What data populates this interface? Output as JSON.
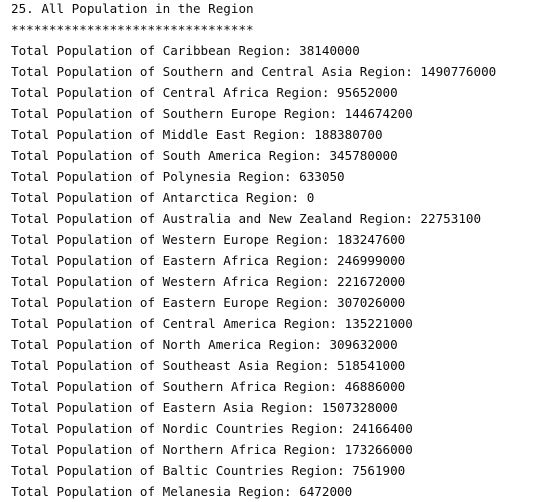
{
  "console": {
    "heading": "25. All Population in the Region",
    "separator": "********************************",
    "lines": [
      "Total Population of Caribbean Region: 38140000",
      "Total Population of Southern and Central Asia Region: 1490776000",
      "Total Population of Central Africa Region: 95652000",
      "Total Population of Southern Europe Region: 144674200",
      "Total Population of Middle East Region: 188380700",
      "Total Population of South America Region: 345780000",
      "Total Population of Polynesia Region: 633050",
      "Total Population of Antarctica Region: 0",
      "Total Population of Australia and New Zealand Region: 22753100",
      "Total Population of Western Europe Region: 183247600",
      "Total Population of Eastern Africa Region: 246999000",
      "Total Population of Western Africa Region: 221672000",
      "Total Population of Eastern Europe Region: 307026000",
      "Total Population of Central America Region: 135221000",
      "Total Population of North America Region: 309632000",
      "Total Population of Southeast Asia Region: 518541000",
      "Total Population of Southern Africa Region: 46886000",
      "Total Population of Eastern Asia Region: 1507328000",
      "Total Population of Nordic Countries Region: 24166400",
      "Total Population of Northern Africa Region: 173266000",
      "Total Population of Baltic Countries Region: 7561900",
      "Total Population of Melanesia Region: 6472000"
    ]
  }
}
